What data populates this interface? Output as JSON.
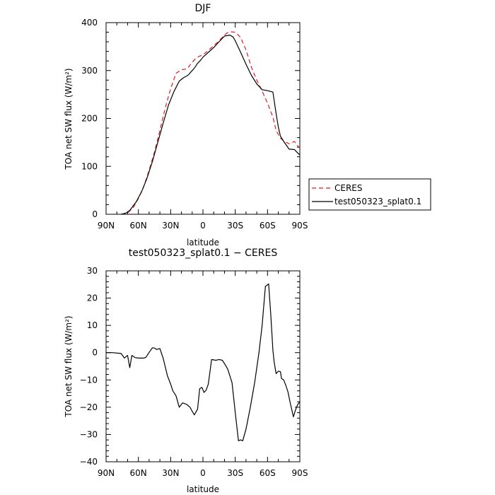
{
  "chart_data": [
    {
      "type": "line",
      "title": "DJF",
      "xlabel": "latitude",
      "ylabel": "TOA net SW flux (W/m²)",
      "xlim": [
        90,
        -90
      ],
      "ylim": [
        0,
        400
      ],
      "xticks": [
        90,
        60,
        30,
        0,
        -30,
        -60,
        -90
      ],
      "xticklabels": [
        "90N",
        "60N",
        "30N",
        "0",
        "30S",
        "60S",
        "90S"
      ],
      "yticks": [
        0,
        100,
        200,
        300,
        400
      ],
      "yticklabels": [
        "0",
        "100",
        "200",
        "300",
        "400"
      ],
      "legend": "outside-right",
      "series": [
        {
          "name": "CERES",
          "color": "#e41a1c",
          "dash": true,
          "x": [
            76,
            70,
            65,
            60,
            55,
            50,
            45,
            40,
            35,
            30,
            25,
            20,
            15,
            10,
            8,
            5,
            3,
            0,
            -5,
            -10,
            -15,
            -20,
            -22,
            -25,
            -30,
            -35,
            -40,
            -45,
            -50,
            -55,
            -60,
            -65,
            -68,
            -72,
            -75,
            -80,
            -85,
            -88,
            -90
          ],
          "y": [
            0,
            3,
            13,
            33,
            58,
            92,
            130,
            175,
            222,
            262,
            294,
            302,
            303,
            317,
            322,
            328,
            330,
            333,
            342,
            352,
            362,
            374,
            378,
            381,
            380,
            369,
            343,
            307,
            280,
            257,
            232,
            203,
            175,
            159,
            153,
            147,
            152,
            142,
            140
          ]
        },
        {
          "name": "test050323_splat0.1",
          "color": "#000000",
          "dash": false,
          "x": [
            76,
            72,
            68,
            62,
            57,
            52,
            47,
            42,
            37,
            32,
            27,
            22,
            18,
            14,
            10,
            8,
            5,
            2,
            0,
            -5,
            -10,
            -15,
            -20,
            -25,
            -28,
            -30,
            -35,
            -40,
            -45,
            -50,
            -55,
            -60,
            -65,
            -68,
            -70,
            -72,
            -75,
            -80,
            -85,
            -88,
            -90
          ],
          "y": [
            0,
            2,
            8,
            26,
            47,
            75,
            110,
            150,
            190,
            228,
            256,
            278,
            285,
            290,
            300,
            305,
            315,
            322,
            328,
            338,
            348,
            360,
            372,
            374,
            370,
            362,
            338,
            313,
            290,
            272,
            260,
            258,
            255,
            210,
            182,
            163,
            152,
            136,
            135,
            128,
            124
          ]
        }
      ]
    },
    {
      "type": "line",
      "title": "test050323_splat0.1 − CERES",
      "xlabel": "latitude",
      "ylabel": "TOA net SW flux (W/m²)",
      "xlim": [
        90,
        -90
      ],
      "ylim": [
        -40,
        30
      ],
      "xticks": [
        90,
        60,
        30,
        0,
        -30,
        -60,
        -90
      ],
      "xticklabels": [
        "90N",
        "60N",
        "30N",
        "0",
        "30S",
        "60S",
        "90S"
      ],
      "yticks": [
        30,
        20,
        10,
        0,
        -10,
        -20,
        -30,
        -40
      ],
      "yticklabels": [
        "30",
        "20",
        "10",
        "0",
        "−10",
        "−20",
        "−30",
        "−40"
      ],
      "series": [
        {
          "name": "",
          "color": "#000000",
          "dash": false,
          "x": [
            90,
            84,
            76,
            73,
            70,
            68,
            66,
            63,
            60,
            55,
            53,
            50,
            47,
            45,
            43,
            40,
            37,
            33,
            30,
            28,
            25,
            22,
            19,
            17,
            15,
            12,
            10,
            8,
            5,
            3,
            1,
            -1,
            -3,
            -5,
            -8,
            -12,
            -15,
            -18,
            -20,
            -23,
            -27,
            -30,
            -33,
            -35,
            -37,
            -40,
            -44,
            -48,
            -52,
            -55,
            -58,
            -61,
            -63,
            -65,
            -66,
            -67,
            -68,
            -70,
            -72,
            -73,
            -75,
            -77,
            -79,
            -81,
            -84,
            -86,
            -88,
            -90
          ],
          "y": [
            0,
            0,
            -0.3,
            -2,
            -1,
            -5.5,
            -1,
            -1.8,
            -2,
            -2,
            -1.7,
            0.1,
            1.8,
            1.7,
            1.2,
            1.5,
            -2,
            -8.5,
            -11.5,
            -14,
            -15.8,
            -20,
            -18.4,
            -18.7,
            -19,
            -20,
            -21.5,
            -22.8,
            -20.7,
            -13.2,
            -12.7,
            -14.6,
            -13.7,
            -11.5,
            -2.5,
            -2.8,
            -2.5,
            -2.8,
            -4,
            -6,
            -11,
            -22,
            -32.3,
            -32,
            -32.3,
            -28,
            -20,
            -11,
            0,
            10,
            24.3,
            25.2,
            14,
            1,
            -3,
            -5.5,
            -7.7,
            -6.8,
            -7,
            -9.5,
            -10,
            -12,
            -14.5,
            -18.3,
            -23.5,
            -21,
            -19,
            -18
          ]
        }
      ]
    }
  ]
}
